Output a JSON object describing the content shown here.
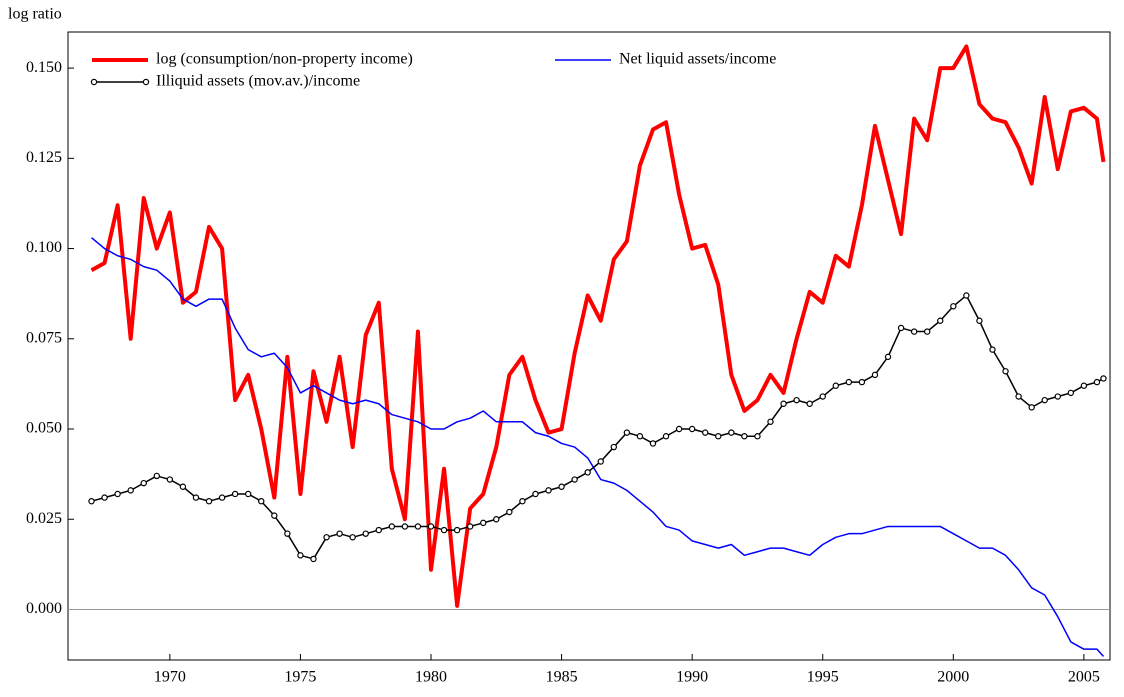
{
  "chart_data": {
    "type": "line",
    "y_label": "log ratio",
    "legend": "upper left",
    "grid": false,
    "zero_line": true,
    "xlim": [
      1966.1,
      2006.0
    ],
    "ylim": [
      -0.014,
      0.16
    ],
    "xticks": [
      1970,
      1975,
      1980,
      1985,
      1990,
      1995,
      2000,
      2005
    ],
    "yticks": [
      {
        "value": 0,
        "label": "0.000"
      },
      {
        "value": 0.025,
        "label": "0.025"
      },
      {
        "value": 0.05,
        "label": "0.050"
      },
      {
        "value": 0.075,
        "label": "0.075"
      },
      {
        "value": 0.1,
        "label": "0.100"
      },
      {
        "value": 0.125,
        "label": "0.125"
      },
      {
        "value": 0.15,
        "label": "0.150"
      }
    ],
    "x": [
      1967.0,
      1967.5,
      1968.0,
      1968.5,
      1969.0,
      1969.5,
      1970.0,
      1970.5,
      1971.0,
      1971.5,
      1972.0,
      1972.5,
      1973.0,
      1973.5,
      1974.0,
      1974.5,
      1975.0,
      1975.5,
      1976.0,
      1976.5,
      1977.0,
      1977.5,
      1978.0,
      1978.5,
      1979.0,
      1979.5,
      1980.0,
      1980.5,
      1981.0,
      1981.5,
      1982.0,
      1982.5,
      1983.0,
      1983.5,
      1984.0,
      1984.5,
      1985.0,
      1985.5,
      1986.0,
      1986.5,
      1987.0,
      1987.5,
      1988.0,
      1988.5,
      1989.0,
      1989.5,
      1990.0,
      1990.5,
      1991.0,
      1991.5,
      1992.0,
      1992.5,
      1993.0,
      1993.5,
      1994.0,
      1994.5,
      1995.0,
      1995.5,
      1996.0,
      1996.5,
      1997.0,
      1997.5,
      1998.0,
      1998.5,
      1999.0,
      1999.5,
      2000.0,
      2000.5,
      2001.0,
      2001.5,
      2002.0,
      2002.5,
      2003.0,
      2003.5,
      2004.0,
      2004.5,
      2005.0,
      2005.5,
      2005.75
    ],
    "series": [
      {
        "name": "log (consumption/non-property income)",
        "color": "#ff0000",
        "width": 4,
        "marker": null,
        "values": [
          0.094,
          0.096,
          0.112,
          0.075,
          0.114,
          0.1,
          0.11,
          0.085,
          0.088,
          0.106,
          0.1,
          0.058,
          0.065,
          0.05,
          0.031,
          0.07,
          0.032,
          0.066,
          0.052,
          0.07,
          0.045,
          0.076,
          0.085,
          0.039,
          0.025,
          0.077,
          0.011,
          0.039,
          0.001,
          0.028,
          0.032,
          0.045,
          0.065,
          0.07,
          0.058,
          0.049,
          0.05,
          0.071,
          0.087,
          0.08,
          0.097,
          0.102,
          0.123,
          0.133,
          0.135,
          0.115,
          0.1,
          0.101,
          0.09,
          0.065,
          0.055,
          0.058,
          0.065,
          0.06,
          0.075,
          0.088,
          0.085,
          0.098,
          0.095,
          0.112,
          0.134,
          0.119,
          0.104,
          0.136,
          0.13,
          0.15,
          0.15,
          0.156,
          0.14,
          0.136,
          0.135,
          0.128,
          0.118,
          0.142,
          0.122,
          0.138,
          0.139,
          0.136,
          0.124
        ]
      },
      {
        "name": "Net liquid assets/income",
        "color": "#0000ff",
        "width": 1.5,
        "marker": null,
        "values": [
          0.103,
          0.1,
          0.098,
          0.097,
          0.095,
          0.094,
          0.091,
          0.086,
          0.084,
          0.086,
          0.086,
          0.078,
          0.072,
          0.07,
          0.071,
          0.067,
          0.06,
          0.062,
          0.06,
          0.058,
          0.057,
          0.058,
          0.057,
          0.054,
          0.053,
          0.052,
          0.05,
          0.05,
          0.052,
          0.053,
          0.055,
          0.052,
          0.052,
          0.052,
          0.049,
          0.048,
          0.046,
          0.045,
          0.042,
          0.036,
          0.035,
          0.033,
          0.03,
          0.027,
          0.023,
          0.022,
          0.019,
          0.018,
          0.017,
          0.018,
          0.015,
          0.016,
          0.017,
          0.017,
          0.016,
          0.015,
          0.018,
          0.02,
          0.021,
          0.021,
          0.022,
          0.023,
          0.023,
          0.023,
          0.023,
          0.023,
          0.021,
          0.019,
          0.017,
          0.017,
          0.015,
          0.011,
          0.006,
          0.004,
          -0.002,
          -0.009,
          -0.011,
          -0.011,
          -0.013
        ]
      },
      {
        "name": "Illiquid assets (mov.av.)/income",
        "color": "#000000",
        "width": 1.5,
        "marker": "circle",
        "values": [
          0.03,
          0.031,
          0.032,
          0.033,
          0.035,
          0.037,
          0.036,
          0.034,
          0.031,
          0.03,
          0.031,
          0.032,
          0.032,
          0.03,
          0.026,
          0.021,
          0.015,
          0.014,
          0.02,
          0.021,
          0.02,
          0.021,
          0.022,
          0.023,
          0.023,
          0.023,
          0.023,
          0.022,
          0.022,
          0.023,
          0.024,
          0.025,
          0.027,
          0.03,
          0.032,
          0.033,
          0.034,
          0.036,
          0.038,
          0.041,
          0.045,
          0.049,
          0.048,
          0.046,
          0.048,
          0.05,
          0.05,
          0.049,
          0.048,
          0.049,
          0.048,
          0.048,
          0.052,
          0.057,
          0.058,
          0.057,
          0.059,
          0.062,
          0.063,
          0.063,
          0.065,
          0.07,
          0.078,
          0.077,
          0.077,
          0.08,
          0.084,
          0.087,
          0.08,
          0.072,
          0.066,
          0.059,
          0.056,
          0.058,
          0.059,
          0.06,
          0.062,
          0.063,
          0.064
        ]
      }
    ]
  }
}
